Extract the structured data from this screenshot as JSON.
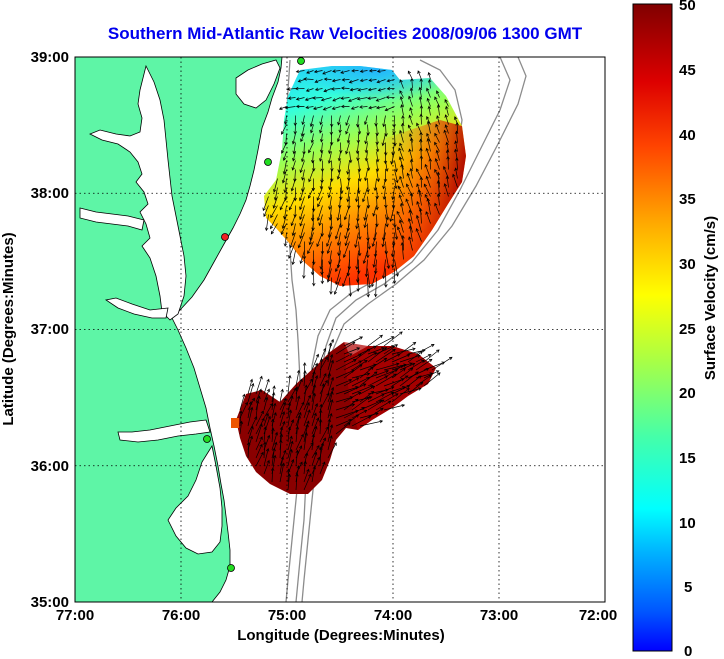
{
  "title": "Southern Mid-Atlantic Raw Velocities 2008/09/06 1300 GMT",
  "xlabel": "Longitude (Degrees:Minutes)",
  "ylabel": "Latitude (Degrees:Minutes)",
  "colorbar_label": "Surface Velocity (cm/s)",
  "lon_ticks": [
    "77:00",
    "76:00",
    "75:00",
    "74:00",
    "73:00",
    "72:00"
  ],
  "lat_ticks": [
    "39:00",
    "38:00",
    "37:00",
    "36:00",
    "35:00"
  ],
  "colorbar_ticks": [
    "50",
    "45",
    "40",
    "35",
    "30",
    "25",
    "20",
    "15",
    "10",
    "5",
    "0"
  ],
  "colors": {
    "land": "#5ef5a6",
    "ocean": "#ffffff",
    "title": "#0000ee",
    "grid": "#000000",
    "isobath": "#8c8c8c",
    "station_green": "#22dd22",
    "station_red": "#ee2222"
  },
  "chart_data": {
    "type": "heatmap",
    "xlim": [
      -77,
      -72
    ],
    "ylim": [
      35,
      39
    ],
    "clim": [
      0,
      50
    ],
    "colormap": "jet",
    "grid": true,
    "colorbar_position": "right"
  }
}
